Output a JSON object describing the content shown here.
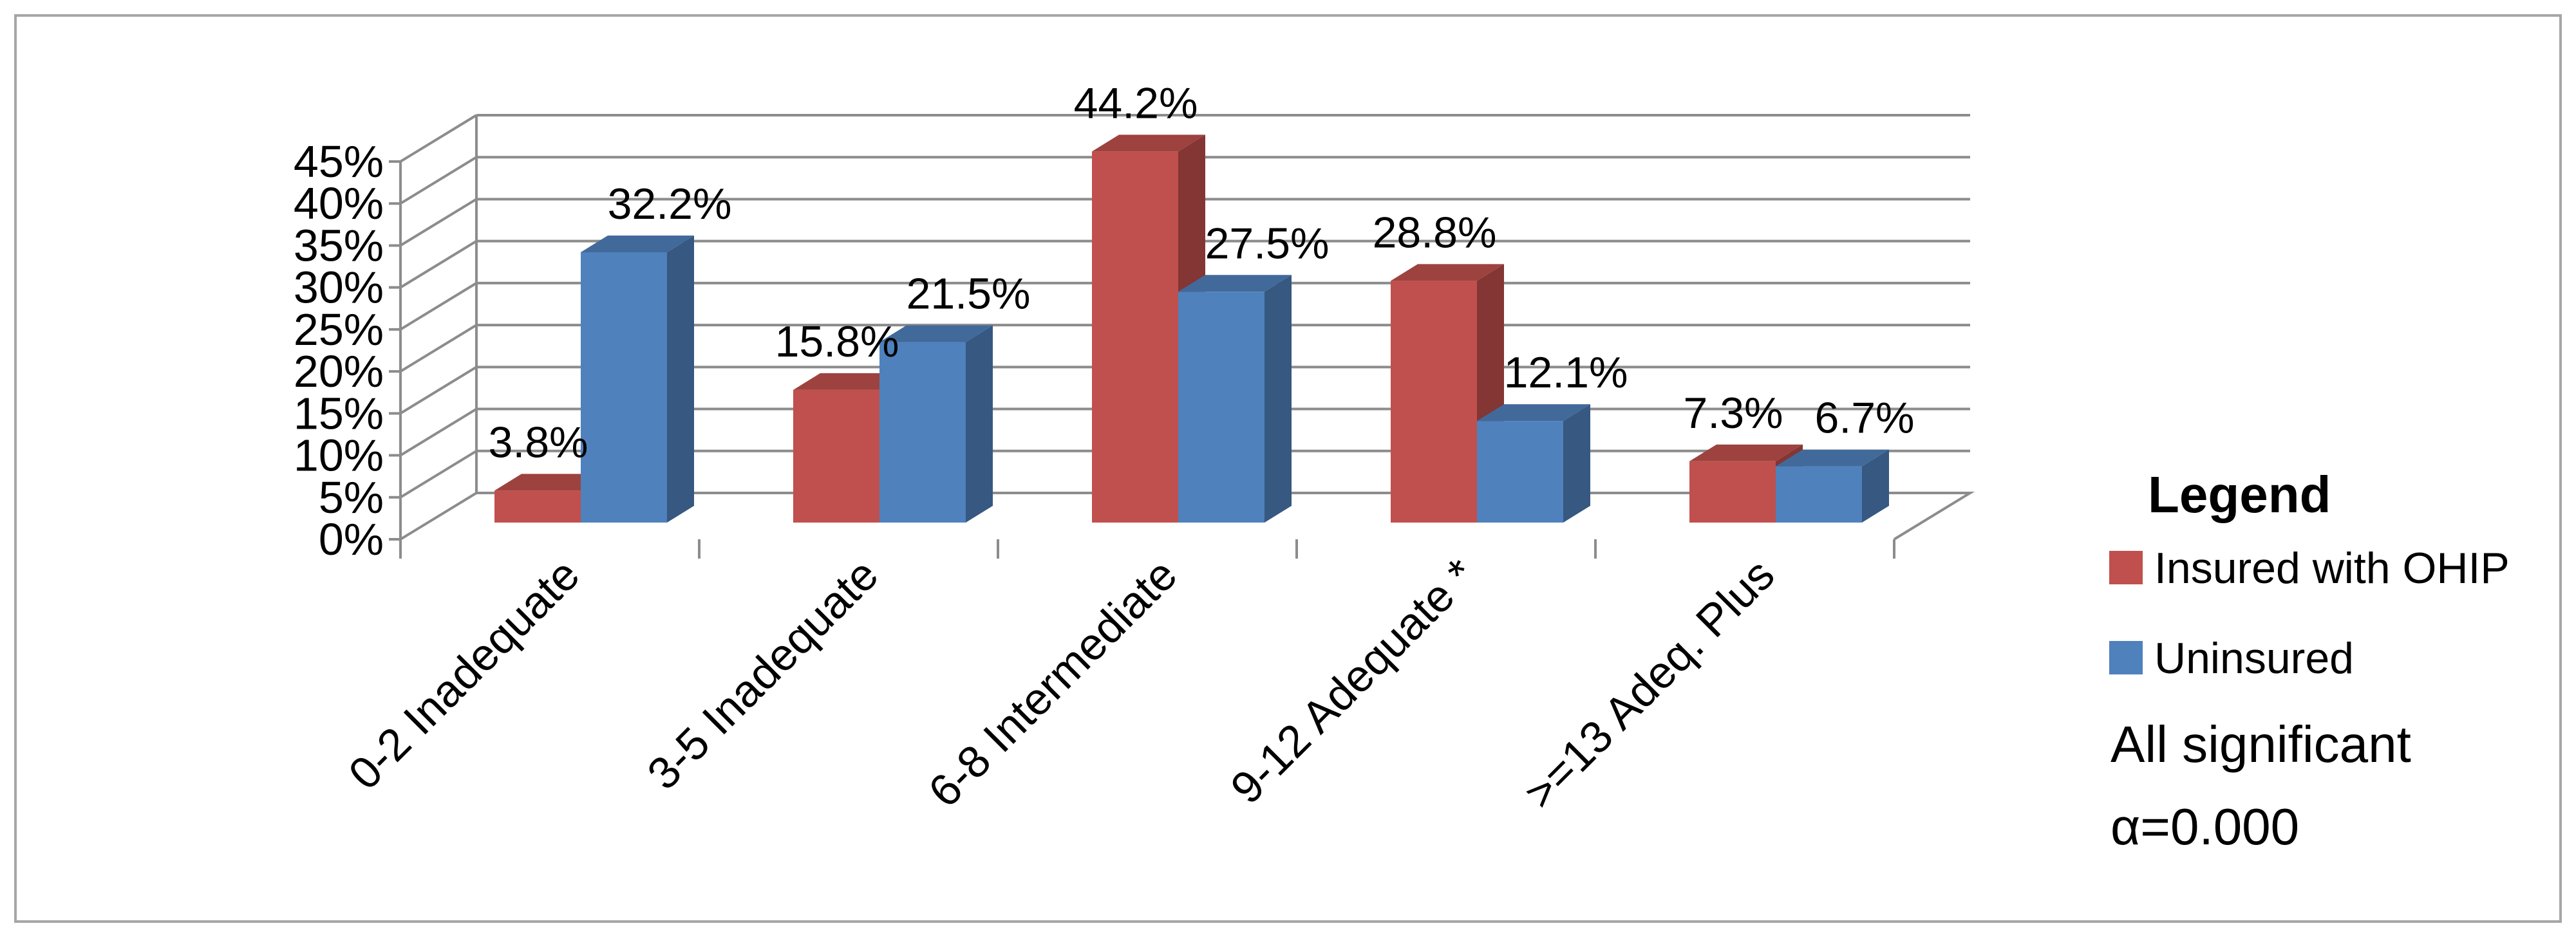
{
  "chart_data": {
    "type": "bar",
    "title": "",
    "xlabel": "",
    "ylabel": "",
    "ylim": [
      0,
      45
    ],
    "y_ticks": [
      "0%",
      "5%",
      "10%",
      "15%",
      "20%",
      "25%",
      "30%",
      "35%",
      "40%",
      "45%"
    ],
    "categories": [
      "0-2 Inadequate",
      "3-5 Inadequate",
      "6-8 Intermediate",
      "9-12 Adequate *",
      ">=13 Adeq. Plus"
    ],
    "series": [
      {
        "name": "Insured with OHIP",
        "values": [
          3.8,
          15.8,
          44.2,
          28.8,
          7.3
        ],
        "labels": [
          "3.8%",
          "15.8%",
          "44.2%",
          "28.8%",
          "7.3%"
        ],
        "color": "#c0504d"
      },
      {
        "name": "Uninsured",
        "values": [
          32.2,
          21.5,
          27.5,
          12.1,
          6.7
        ],
        "labels": [
          "32.2%",
          "21.5%",
          "27.5%",
          "12.1%",
          "6.7%"
        ],
        "color": "#4f81bd"
      }
    ],
    "grid": true,
    "legend": {
      "title": "Legend",
      "placement": "right"
    },
    "note_lines": [
      "All significant",
      "α=0.000"
    ]
  }
}
